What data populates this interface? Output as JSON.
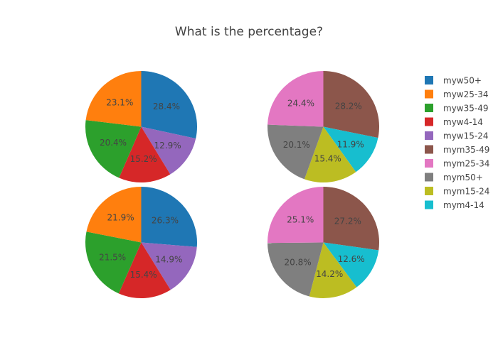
{
  "chart_data": {
    "title": "What is the percentage?",
    "legend_position": "right",
    "legend": [
      {
        "name": "myw50+",
        "color": "#1f77b4"
      },
      {
        "name": "myw25-34",
        "color": "#ff7f0e"
      },
      {
        "name": "myw35-49",
        "color": "#2ca02c"
      },
      {
        "name": "myw4-14",
        "color": "#d62728"
      },
      {
        "name": "myw15-24",
        "color": "#9467bd"
      },
      {
        "name": "mym35-49",
        "color": "#8c564b"
      },
      {
        "name": "mym25-34",
        "color": "#e377c2"
      },
      {
        "name": "mym50+",
        "color": "#7f7f7f"
      },
      {
        "name": "mym15-24",
        "color": "#bcbd22"
      },
      {
        "name": "mym4-14",
        "color": "#17becf"
      }
    ],
    "charts": [
      {
        "type": "pie",
        "slices": [
          {
            "label": "myw50+",
            "value": 28.4,
            "text": "28.4%",
            "color": "#1f77b4"
          },
          {
            "label": "myw15-24",
            "value": 12.9,
            "text": "12.9%",
            "color": "#9467bd"
          },
          {
            "label": "myw4-14",
            "value": 15.2,
            "text": "15.2%",
            "color": "#d62728"
          },
          {
            "label": "myw35-49",
            "value": 20.4,
            "text": "20.4%",
            "color": "#2ca02c"
          },
          {
            "label": "myw25-34",
            "value": 23.1,
            "text": "23.1%",
            "color": "#ff7f0e"
          }
        ]
      },
      {
        "type": "pie",
        "slices": [
          {
            "label": "mym35-49",
            "value": 28.2,
            "text": "28.2%",
            "color": "#8c564b"
          },
          {
            "label": "mym4-14",
            "value": 11.9,
            "text": "11.9%",
            "color": "#17becf"
          },
          {
            "label": "mym15-24",
            "value": 15.4,
            "text": "15.4%",
            "color": "#bcbd22"
          },
          {
            "label": "mym50+",
            "value": 20.1,
            "text": "20.1%",
            "color": "#7f7f7f"
          },
          {
            "label": "mym25-34",
            "value": 24.4,
            "text": "24.4%",
            "color": "#e377c2"
          }
        ]
      },
      {
        "type": "pie",
        "slices": [
          {
            "label": "myw50+",
            "value": 26.3,
            "text": "26.3%",
            "color": "#1f77b4"
          },
          {
            "label": "myw15-24",
            "value": 14.9,
            "text": "14.9%",
            "color": "#9467bd"
          },
          {
            "label": "myw4-14",
            "value": 15.4,
            "text": "15.4%",
            "color": "#d62728"
          },
          {
            "label": "myw35-49",
            "value": 21.5,
            "text": "21.5%",
            "color": "#2ca02c"
          },
          {
            "label": "myw25-34",
            "value": 21.9,
            "text": "21.9%",
            "color": "#ff7f0e"
          }
        ]
      },
      {
        "type": "pie",
        "slices": [
          {
            "label": "mym35-49",
            "value": 27.2,
            "text": "27.2%",
            "color": "#8c564b"
          },
          {
            "label": "mym4-14",
            "value": 12.6,
            "text": "12.6%",
            "color": "#17becf"
          },
          {
            "label": "mym15-24",
            "value": 14.2,
            "text": "14.2%",
            "color": "#bcbd22"
          },
          {
            "label": "mym50+",
            "value": 20.8,
            "text": "20.8%",
            "color": "#7f7f7f"
          },
          {
            "label": "mym25-34",
            "value": 25.1,
            "text": "25.1%",
            "color": "#e377c2"
          }
        ]
      }
    ]
  }
}
